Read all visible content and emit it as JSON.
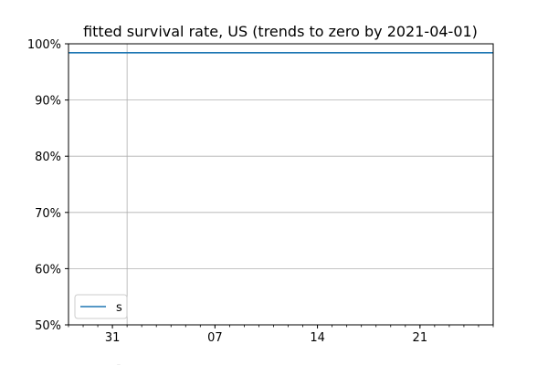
{
  "chart_data": {
    "type": "line",
    "title": "fitted survival rate, US (trends to zero by 2021-04-01)",
    "xlabel": "",
    "ylabel": "",
    "x_tick_labels": [
      "31",
      "07",
      "14",
      "21"
    ],
    "y_tick_labels": [
      "50%",
      "60%",
      "70%",
      "80%",
      "90%",
      "100%"
    ],
    "y_ticks": [
      0.5,
      0.6,
      0.7,
      0.8,
      0.9,
      1.0
    ],
    "ylim": [
      0.5,
      1.0
    ],
    "x_range_days": [
      -3,
      26
    ],
    "x_tick_days": [
      0,
      7,
      14,
      21
    ],
    "x_grid_days": [
      1
    ],
    "grid": true,
    "legend_position": "lower-left",
    "series": [
      {
        "name": "s",
        "color": "#1f77b4",
        "x_days": [
          -3,
          26
        ],
        "y": [
          0.984,
          0.984
        ]
      }
    ],
    "partial_label": "-"
  }
}
